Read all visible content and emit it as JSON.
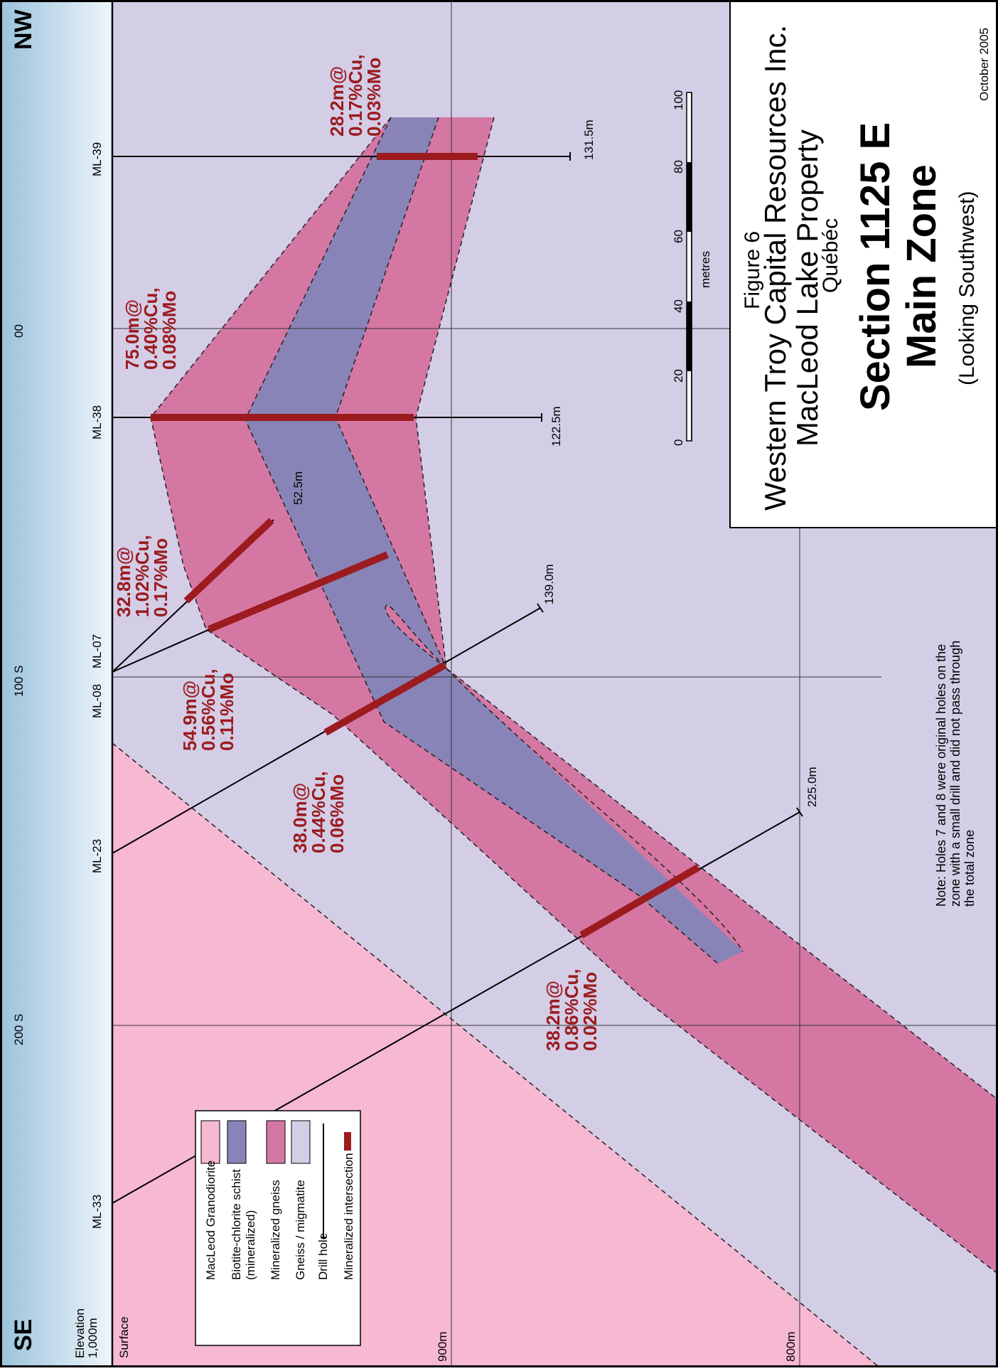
{
  "header": {
    "left_direction": "SE",
    "right_direction": "NW",
    "elevation_label_line1": "Elevation",
    "elevation_label_line2": "1,000m",
    "surface_label": "Surface",
    "level_900": "900m",
    "level_800": "800m"
  },
  "sections": [
    "200 S",
    "100 S",
    "00"
  ],
  "holes": [
    "ML-33",
    "ML-23",
    "ML-08",
    "ML-07",
    "ML-38",
    "ML-39"
  ],
  "hole_depths": [
    "139.0m",
    "122.5m",
    "131.5m",
    "225.0m",
    "52.5m"
  ],
  "intersections": [
    {
      "line1": "28.2m@",
      "line2": "0.17%Cu,",
      "line3": "0.03%Mo"
    },
    {
      "line1": "75.0m@",
      "line2": "0.40%Cu,",
      "line3": "0.08%Mo"
    },
    {
      "line1": "32.8m@",
      "line2": "1.02%Cu,",
      "line3": "0.17%Mo"
    },
    {
      "line1": "54.9m@",
      "line2": "0.56%Cu,",
      "line3": "0.11%Mo"
    },
    {
      "line1": "38.0m@",
      "line2": "0.44%Cu,",
      "line3": "0.06%Mo"
    },
    {
      "line1": "38.2m@",
      "line2": "0.86%Cu,",
      "line3": "0.02%Mo"
    }
  ],
  "scale": {
    "ticks": [
      "0",
      "20",
      "40",
      "60",
      "80",
      "100"
    ],
    "unit": "metres"
  },
  "title_block": {
    "figure": "Figure 6",
    "company": "Western Troy Capital Resources Inc.",
    "property": "MacLeod Lake Property",
    "province": "Québéc",
    "section": "Section 1125 E",
    "zone": "Main Zone",
    "view": "(Looking Southwest)",
    "date": "October 2005"
  },
  "note": {
    "line1": "Note: Holes 7 and 8 were original holes on the",
    "line2": "zone with a small drill and did not pass through",
    "line3": "the total zone"
  },
  "legend": {
    "items": [
      {
        "label": "MacLeod Granodiorite",
        "color": "#f7b8d2"
      },
      {
        "label": "Biotite-chlorite schist",
        "label2": "(mineralized)",
        "color": "#8884b8"
      },
      {
        "label": "Mineralized gneiss",
        "color": "#d577a3"
      },
      {
        "label": "Gneiss / migmatite",
        "color": "#d4cde6"
      }
    ],
    "drill_hole": "Drill hole",
    "intersection": "Mineralized intersection"
  },
  "colors": {
    "granodiorite": "#f7b8d2",
    "schist": "#8884b8",
    "mineralized_gneiss": "#d577a3",
    "gneiss": "#d4cde6",
    "intersection": "#9b1b1f"
  }
}
